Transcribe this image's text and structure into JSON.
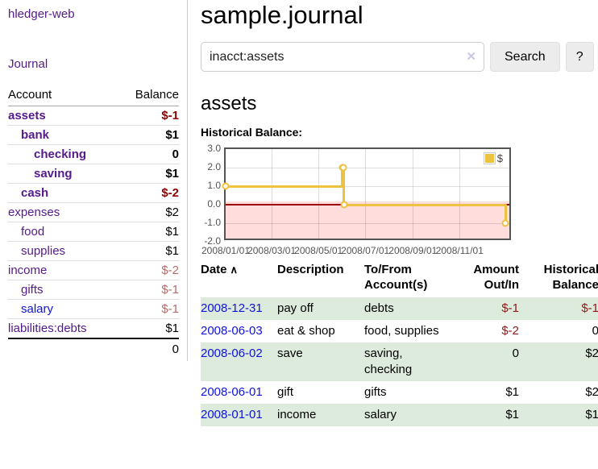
{
  "app": {
    "title": "hledger-web",
    "nav": {
      "journal": "Journal"
    }
  },
  "sidebar": {
    "table_headers": {
      "account": "Account",
      "balance": "Balance"
    },
    "accounts": [
      {
        "name": "assets",
        "balance": "$-1",
        "indent": 0,
        "bold": true,
        "name_color": "purple",
        "balance_class": "neg-bold"
      },
      {
        "name": "bank",
        "balance": "$1",
        "indent": 1,
        "bold": true,
        "name_color": "purple",
        "balance_class": "pos-bold"
      },
      {
        "name": "checking",
        "balance": "0",
        "indent": 2,
        "bold": true,
        "name_color": "purple",
        "balance_class": "pos-bold"
      },
      {
        "name": "saving",
        "balance": "$1",
        "indent": 2,
        "bold": true,
        "name_color": "purple",
        "balance_class": "pos-bold"
      },
      {
        "name": "cash",
        "balance": "$-2",
        "indent": 1,
        "bold": true,
        "name_color": "purple",
        "balance_class": "neg-bold"
      },
      {
        "name": "expenses",
        "balance": "$2",
        "indent": 0,
        "bold": false,
        "name_color": "purple",
        "balance_class": "pos"
      },
      {
        "name": "food",
        "balance": "$1",
        "indent": 1,
        "bold": false,
        "name_color": "purple",
        "balance_class": "pos"
      },
      {
        "name": "supplies",
        "balance": "$1",
        "indent": 1,
        "bold": false,
        "name_color": "purple",
        "balance_class": "pos"
      },
      {
        "name": "income",
        "balance": "$-2",
        "indent": 0,
        "bold": false,
        "name_color": "purple",
        "balance_class": "neg-faded"
      },
      {
        "name": "gifts",
        "balance": "$-1",
        "indent": 1,
        "bold": false,
        "name_color": "purple",
        "balance_class": "neg-faded"
      },
      {
        "name": "salary",
        "balance": "$-1",
        "indent": 1,
        "bold": false,
        "name_color": "blue",
        "balance_class": "neg-faded"
      },
      {
        "name": "liabilities:debts",
        "balance": "$1",
        "indent": 0,
        "bold": false,
        "name_color": "purple",
        "balance_class": "pos"
      }
    ],
    "total": "0"
  },
  "main": {
    "title": "sample.journal",
    "search": {
      "value": "inacct:assets",
      "clear_icon": "✕",
      "button_label": "Search",
      "help_label": "?"
    },
    "account_heading": "assets",
    "section_label": "Historical Balance:"
  },
  "chart_data": {
    "type": "line",
    "step": true,
    "title": "Historical Balance:",
    "series": [
      {
        "name": "$",
        "color": "#edc240",
        "points": [
          [
            "2008-01-01",
            1
          ],
          [
            "2008-06-01",
            2
          ],
          [
            "2008-06-02",
            2
          ],
          [
            "2008-06-03",
            0
          ],
          [
            "2008-12-31",
            -1
          ]
        ]
      }
    ],
    "ylim": [
      -2,
      3
    ],
    "yticks": [
      3,
      2,
      1,
      0,
      -1,
      -2
    ],
    "ytick_labels": [
      "3.0",
      "2.0",
      "1.0",
      "0.0",
      "-1.0",
      "-2.0"
    ],
    "xticks": [
      "2008-01-01",
      "2008-03-01",
      "2008-05-01",
      "2008-07-01",
      "2008-09-01",
      "2008-11-01"
    ],
    "xtick_labels": [
      "2008/01/01",
      "2008/03/01",
      "2008/05/01",
      "2008/07/01",
      "2008/09/01",
      "2008/11/01"
    ],
    "x_start": "2008-01-01",
    "x_end": "2009-01-09",
    "grid": true,
    "legend": {
      "label": "$",
      "position": "top-right"
    },
    "colors": {
      "border": "#545454",
      "negative_region": "#ffdddd",
      "zero_line": "#990000"
    }
  },
  "register": {
    "sort_icon": "∧",
    "headers": [
      "Date",
      "Description",
      "To/From Account(s)",
      "Amount Out/In",
      "Historical Balance"
    ],
    "rows": [
      {
        "date": "2008-12-31",
        "description": "pay off",
        "accounts": "debts",
        "amount": "$-1",
        "amount_neg": true,
        "balance": "$-1",
        "balance_neg": true
      },
      {
        "date": "2008-06-03",
        "description": "eat & shop",
        "accounts": "food, supplies",
        "amount": "$-2",
        "amount_neg": true,
        "balance": "0",
        "balance_neg": false
      },
      {
        "date": "2008-06-02",
        "description": "save",
        "accounts": "saving, checking",
        "amount": "0",
        "amount_neg": false,
        "balance": "$2",
        "balance_neg": false
      },
      {
        "date": "2008-06-01",
        "description": "gift",
        "accounts": "gifts",
        "amount": "$1",
        "amount_neg": false,
        "balance": "$2",
        "balance_neg": false
      },
      {
        "date": "2008-01-01",
        "description": "income",
        "accounts": "salary",
        "amount": "$1",
        "amount_neg": false,
        "balance": "$1",
        "balance_neg": false
      }
    ]
  }
}
